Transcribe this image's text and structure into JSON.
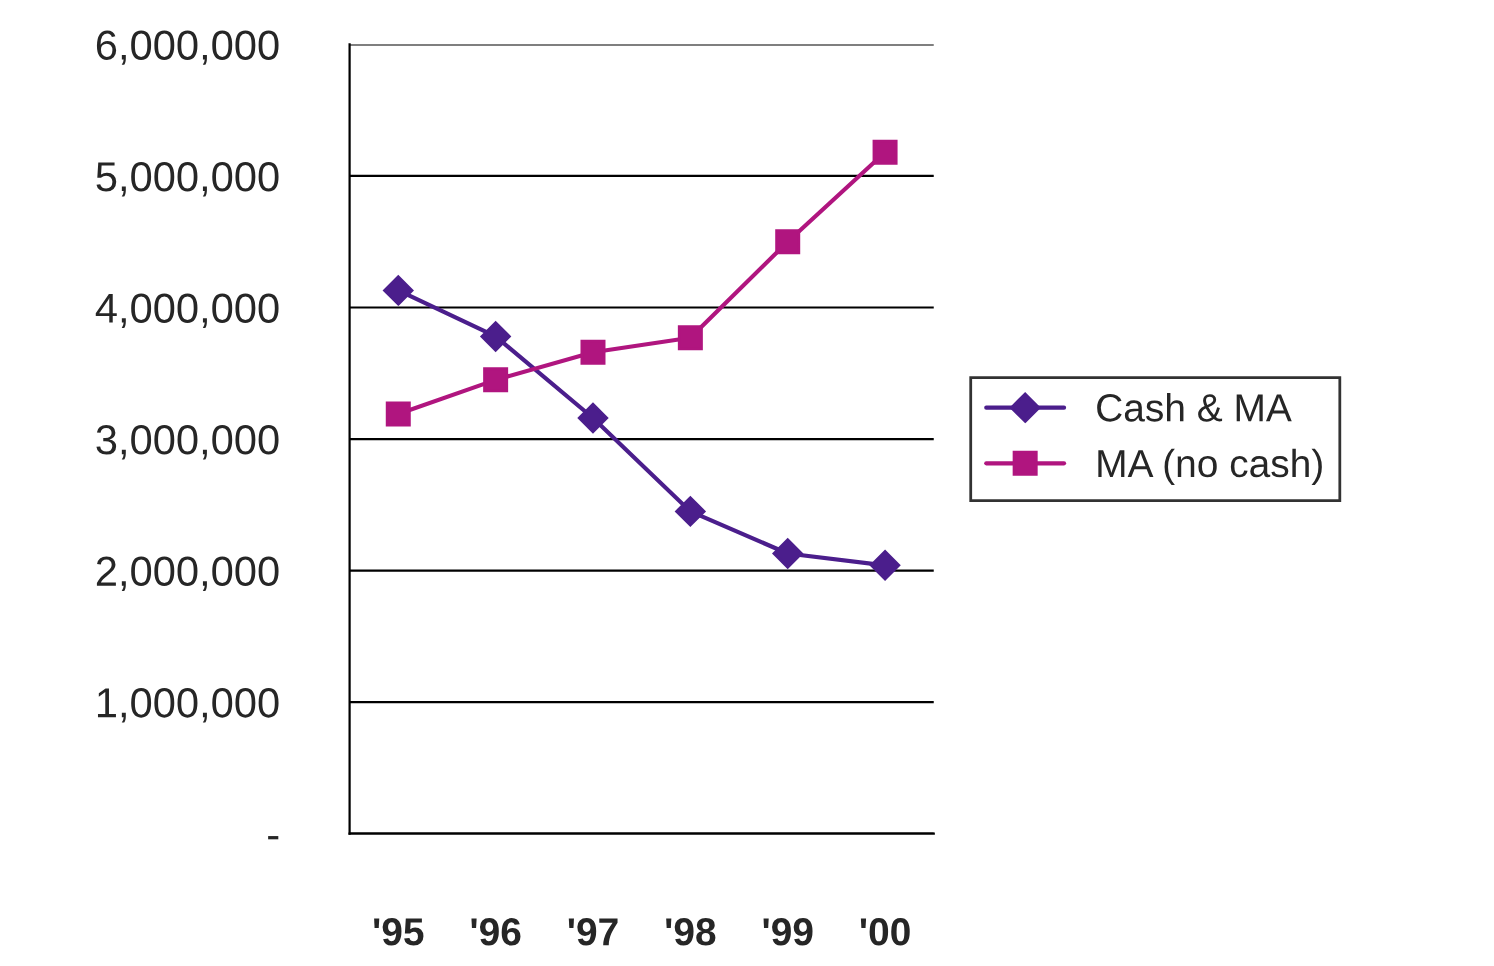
{
  "chart_data": {
    "type": "line",
    "categories": [
      "'95",
      "'96",
      "'97",
      "'98",
      "'99",
      "'00"
    ],
    "series": [
      {
        "name": "Cash & MA",
        "color": "#4b1e8c",
        "marker": "diamond",
        "values": [
          4130000,
          3780000,
          3160000,
          2450000,
          2130000,
          2040000
        ]
      },
      {
        "name": "MA (no cash)",
        "color": "#b0157f",
        "marker": "square",
        "values": [
          3190000,
          3450000,
          3660000,
          3770000,
          4500000,
          5180000
        ]
      }
    ],
    "ylim": [
      0,
      6000000
    ],
    "yticks": [
      {
        "value": 0,
        "label": "-"
      },
      {
        "value": 1000000,
        "label": "1,000,000"
      },
      {
        "value": 2000000,
        "label": "2,000,000"
      },
      {
        "value": 3000000,
        "label": "3,000,000"
      },
      {
        "value": 4000000,
        "label": "4,000,000"
      },
      {
        "value": 5000000,
        "label": "5,000,000"
      },
      {
        "value": 6000000,
        "label": "6,000,000"
      }
    ],
    "grid": "y",
    "legend": "right",
    "line_style": "solid"
  }
}
